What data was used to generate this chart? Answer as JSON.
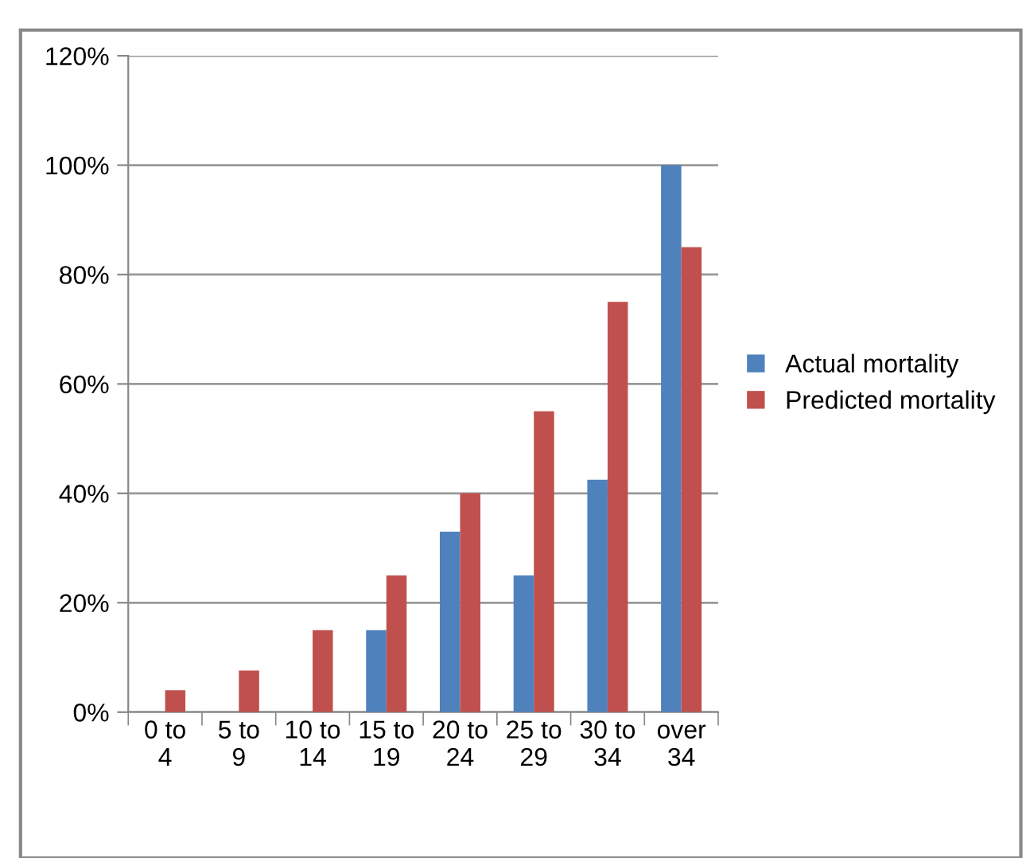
{
  "chart_data": {
    "type": "bar",
    "categories": [
      "0 to\n4",
      "5 to\n9",
      "10 to\n14",
      "15 to\n19",
      "20 to\n24",
      "25 to\n29",
      "30 to\n34",
      "over\n34"
    ],
    "series": [
      {
        "name": "Actual mortality",
        "color": "#4f81bd",
        "values": [
          0,
          0,
          0,
          15,
          33,
          25,
          42.5,
          100
        ]
      },
      {
        "name": "Predicted mortality",
        "color": "#c0504d",
        "values": [
          4,
          7.6,
          15,
          25,
          40,
          55,
          75,
          85
        ]
      }
    ],
    "ylim": [
      0,
      120
    ],
    "yticks": [
      {
        "value": 0,
        "label": "0%"
      },
      {
        "value": 20,
        "label": "20%"
      },
      {
        "value": 40,
        "label": "40%"
      },
      {
        "value": 60,
        "label": "60%"
      },
      {
        "value": 80,
        "label": "80%"
      },
      {
        "value": 100,
        "label": "100%"
      },
      {
        "value": 120,
        "label": "120%"
      }
    ],
    "grid": "y",
    "legend": "right"
  }
}
